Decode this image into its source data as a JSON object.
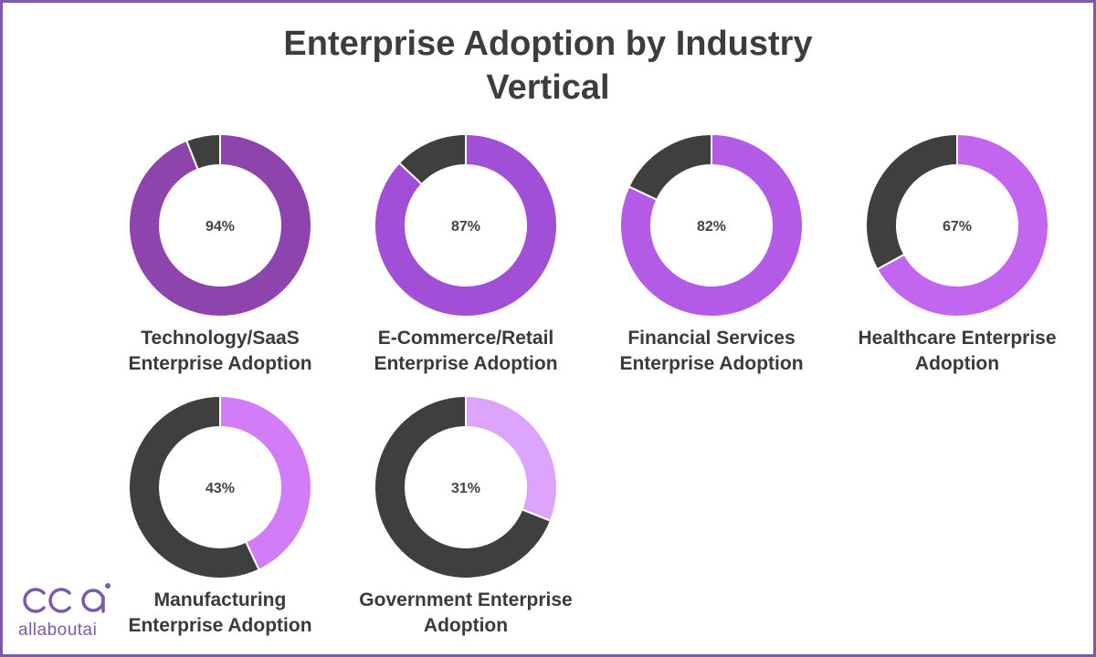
{
  "chart_data": {
    "type": "pie",
    "variant": "donut",
    "title": "Enterprise Adoption by Industry Vertical",
    "title_lines": [
      "Enterprise Adoption by Industry",
      "Vertical"
    ],
    "series": [
      {
        "name": "Technology/SaaS Enterprise Adoption",
        "label_lines": [
          "Technology/SaaS",
          "Enterprise Adoption"
        ],
        "value": 94,
        "value_label": "94%",
        "color": "#8e44ad"
      },
      {
        "name": "E-Commerce/Retail Enterprise Adoption",
        "label_lines": [
          "E-Commerce/Retail",
          "Enterprise Adoption"
        ],
        "value": 87,
        "value_label": "87%",
        "color": "#a04fd6"
      },
      {
        "name": "Financial Services Enterprise Adoption",
        "label_lines": [
          "Financial Services",
          "Enterprise Adoption"
        ],
        "value": 82,
        "value_label": "82%",
        "color": "#b35be6"
      },
      {
        "name": "Healthcare Enterprise Adoption",
        "label_lines": [
          "Healthcare Enterprise",
          "Adoption"
        ],
        "value": 67,
        "value_label": "67%",
        "color": "#c266f0"
      },
      {
        "name": "Manufacturing Enterprise Adoption",
        "label_lines": [
          "Manufacturing",
          "Enterprise Adoption"
        ],
        "value": 43,
        "value_label": "43%",
        "color": "#d27cf7"
      },
      {
        "name": "Government Enterprise Adoption",
        "label_lines": [
          "Government Enterprise",
          "Adoption"
        ],
        "value": 31,
        "value_label": "31%",
        "color": "#dda4fb"
      }
    ],
    "remainder_color": "#3f3f3f",
    "max": 100
  },
  "brand": {
    "logo_text": "allaboutai",
    "color": "#7b5ba8"
  }
}
